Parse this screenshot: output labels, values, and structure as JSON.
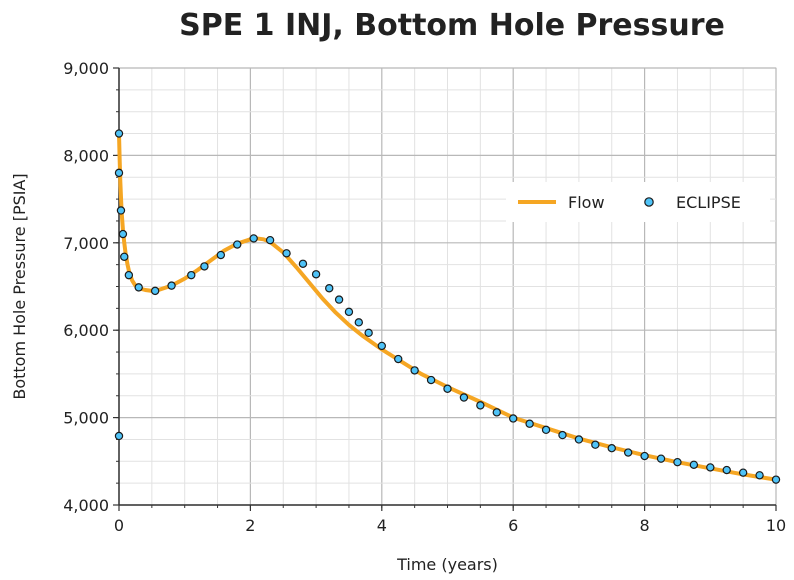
{
  "chart_data": {
    "type": "line",
    "title": "SPE 1 INJ, Bottom Hole Pressure",
    "xlabel": "Time (years)",
    "ylabel": "Bottom Hole Pressure [PSIA]",
    "xlim": [
      0,
      10
    ],
    "ylim": [
      4000,
      9000
    ],
    "x_ticks": [
      0,
      2,
      4,
      6,
      8,
      10
    ],
    "y_ticks": [
      4000,
      5000,
      6000,
      7000,
      8000,
      9000
    ],
    "y_tick_labels": [
      "4,000",
      "5,000",
      "6,000",
      "7,000",
      "8,000",
      "9,000"
    ],
    "grid": true,
    "legend_position": "right",
    "series": [
      {
        "name": "Flow",
        "style": "line",
        "color": "#f5a623",
        "x": [
          0.0,
          0.01,
          0.02,
          0.04,
          0.06,
          0.08,
          0.1,
          0.13,
          0.16,
          0.2,
          0.25,
          0.3,
          0.4,
          0.5,
          0.6,
          0.8,
          1.0,
          1.2,
          1.4,
          1.6,
          1.8,
          2.0,
          2.1,
          2.2,
          2.3,
          2.5,
          2.7,
          2.9,
          3.1,
          3.3,
          3.5,
          3.7,
          4.0,
          4.3,
          4.6,
          5.0,
          5.5,
          6.0,
          6.5,
          7.0,
          7.5,
          8.0,
          8.5,
          9.0,
          9.5,
          10.0
        ],
        "values": [
          8250,
          7950,
          7700,
          7350,
          7150,
          7000,
          6880,
          6750,
          6650,
          6570,
          6510,
          6480,
          6460,
          6450,
          6460,
          6510,
          6590,
          6690,
          6800,
          6910,
          6990,
          7040,
          7050,
          7040,
          7010,
          6890,
          6720,
          6540,
          6360,
          6200,
          6060,
          5940,
          5780,
          5640,
          5500,
          5350,
          5180,
          5000,
          4880,
          4760,
          4660,
          4570,
          4490,
          4420,
          4350,
          4290
        ]
      },
      {
        "name": "ECLIPSE",
        "style": "markers",
        "color": "#4fc3f7",
        "x": [
          0.0,
          0.0,
          0.0,
          0.03,
          0.06,
          0.08,
          0.15,
          0.3,
          0.55,
          0.8,
          1.1,
          1.3,
          1.55,
          1.8,
          2.05,
          2.3,
          2.55,
          2.8,
          3.0,
          3.2,
          3.35,
          3.5,
          3.65,
          3.8,
          4.0,
          4.25,
          4.5,
          4.75,
          5.0,
          5.25,
          5.5,
          5.75,
          6.0,
          6.25,
          6.5,
          6.75,
          7.0,
          7.25,
          7.5,
          7.75,
          8.0,
          8.25,
          8.5,
          8.75,
          9.0,
          9.25,
          9.5,
          9.75,
          10.0
        ],
        "values": [
          4790,
          8250,
          7800,
          7370,
          7100,
          6840,
          6630,
          6490,
          6450,
          6510,
          6630,
          6730,
          6860,
          6980,
          7050,
          7030,
          6880,
          6760,
          6640,
          6480,
          6350,
          6210,
          6090,
          5970,
          5820,
          5670,
          5540,
          5430,
          5330,
          5230,
          5140,
          5060,
          4990,
          4930,
          4860,
          4800,
          4750,
          4690,
          4650,
          4600,
          4560,
          4530,
          4490,
          4460,
          4430,
          4400,
          4370,
          4340,
          4290
        ]
      }
    ]
  }
}
